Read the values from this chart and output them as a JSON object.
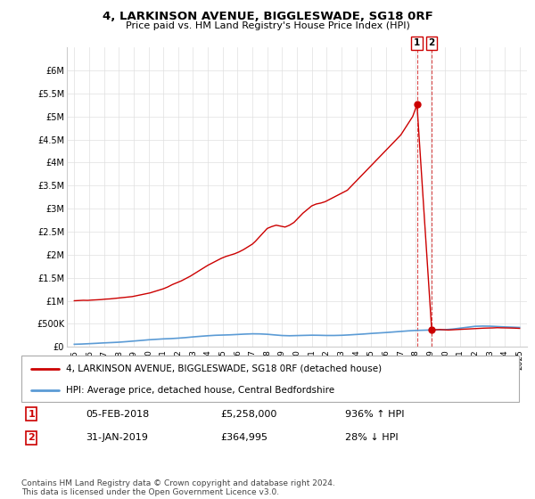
{
  "title": "4, LARKINSON AVENUE, BIGGLESWADE, SG18 0RF",
  "subtitle": "Price paid vs. HM Land Registry's House Price Index (HPI)",
  "legend_line1": "4, LARKINSON AVENUE, BIGGLESWADE, SG18 0RF (detached house)",
  "legend_line2": "HPI: Average price, detached house, Central Bedfordshire",
  "annotation1_date": "05-FEB-2018",
  "annotation1_price": "£5,258,000",
  "annotation1_hpi": "936% ↑ HPI",
  "annotation2_date": "31-JAN-2019",
  "annotation2_price": "£364,995",
  "annotation2_hpi": "28% ↓ HPI",
  "footer": "Contains HM Land Registry data © Crown copyright and database right 2024.\nThis data is licensed under the Open Government Licence v3.0.",
  "hpi_color": "#5b9bd5",
  "price_color": "#cc0000",
  "ylim": [
    0,
    6500000
  ],
  "yticks": [
    0,
    500000,
    1000000,
    1500000,
    2000000,
    2500000,
    3000000,
    3500000,
    4000000,
    4500000,
    5000000,
    5500000,
    6000000
  ],
  "hpi_x": [
    1995.0,
    1995.5,
    1996.0,
    1996.5,
    1997.0,
    1997.5,
    1998.0,
    1998.5,
    1999.0,
    1999.5,
    2000.0,
    2000.5,
    2001.0,
    2001.5,
    2002.0,
    2002.5,
    2003.0,
    2003.5,
    2004.0,
    2004.5,
    2005.0,
    2005.5,
    2006.0,
    2006.5,
    2007.0,
    2007.5,
    2008.0,
    2008.5,
    2009.0,
    2009.5,
    2010.0,
    2010.5,
    2011.0,
    2011.5,
    2012.0,
    2012.5,
    2013.0,
    2013.5,
    2014.0,
    2014.5,
    2015.0,
    2015.5,
    2016.0,
    2016.5,
    2017.0,
    2017.5,
    2018.0,
    2018.5,
    2019.0,
    2019.5,
    2020.0,
    2020.5,
    2021.0,
    2021.5,
    2022.0,
    2022.5,
    2023.0,
    2023.5,
    2024.0,
    2024.5,
    2025.0
  ],
  "hpi_y": [
    55000,
    60000,
    68000,
    76000,
    85000,
    92000,
    100000,
    112000,
    125000,
    138000,
    152000,
    162000,
    172000,
    178000,
    188000,
    200000,
    215000,
    228000,
    240000,
    250000,
    255000,
    260000,
    268000,
    276000,
    282000,
    280000,
    272000,
    258000,
    245000,
    240000,
    244000,
    248000,
    252000,
    250000,
    246000,
    246000,
    250000,
    258000,
    268000,
    278000,
    290000,
    300000,
    310000,
    322000,
    334000,
    346000,
    355000,
    360000,
    365000,
    368000,
    372000,
    385000,
    405000,
    425000,
    445000,
    450000,
    448000,
    440000,
    432000,
    426000,
    420000
  ],
  "price_x": [
    1995.0,
    1995.3,
    1995.6,
    1995.9,
    1996.2,
    1996.5,
    1996.8,
    1997.1,
    1997.4,
    1997.7,
    1998.0,
    1998.3,
    1998.6,
    1998.9,
    1999.2,
    1999.5,
    1999.8,
    2000.1,
    2000.4,
    2000.7,
    2001.0,
    2001.3,
    2001.6,
    2001.9,
    2002.2,
    2002.5,
    2002.8,
    2003.1,
    2003.4,
    2003.7,
    2004.0,
    2004.3,
    2004.6,
    2004.9,
    2005.2,
    2005.5,
    2005.8,
    2006.1,
    2006.4,
    2006.7,
    2007.0,
    2007.2,
    2007.4,
    2007.6,
    2007.8,
    2008.0,
    2008.3,
    2008.6,
    2008.9,
    2009.2,
    2009.5,
    2009.8,
    2010.1,
    2010.4,
    2010.7,
    2011.0,
    2011.3,
    2011.6,
    2011.9,
    2012.2,
    2012.5,
    2012.8,
    2013.1,
    2013.4,
    2013.7,
    2014.0,
    2014.3,
    2014.6,
    2014.9,
    2015.2,
    2015.5,
    2015.8,
    2016.1,
    2016.4,
    2016.7,
    2017.0,
    2017.2,
    2017.4,
    2017.6,
    2017.8,
    2018.09,
    2019.08,
    2019.3,
    2019.6,
    2019.9,
    2020.2,
    2020.5,
    2020.8,
    2021.1,
    2021.4,
    2021.7,
    2022.0,
    2022.3,
    2022.6,
    2022.9,
    2023.2,
    2023.5,
    2023.8,
    2024.1,
    2024.4,
    2024.7,
    2025.0
  ],
  "price_y": [
    1000000,
    1005000,
    1010000,
    1008000,
    1015000,
    1020000,
    1025000,
    1035000,
    1040000,
    1050000,
    1060000,
    1070000,
    1080000,
    1090000,
    1110000,
    1130000,
    1150000,
    1170000,
    1200000,
    1230000,
    1260000,
    1300000,
    1350000,
    1390000,
    1430000,
    1480000,
    1530000,
    1590000,
    1650000,
    1710000,
    1770000,
    1820000,
    1870000,
    1920000,
    1960000,
    1990000,
    2020000,
    2060000,
    2110000,
    2170000,
    2230000,
    2290000,
    2360000,
    2430000,
    2500000,
    2570000,
    2610000,
    2640000,
    2620000,
    2600000,
    2640000,
    2700000,
    2800000,
    2900000,
    2980000,
    3060000,
    3100000,
    3120000,
    3150000,
    3200000,
    3250000,
    3300000,
    3350000,
    3400000,
    3500000,
    3600000,
    3700000,
    3800000,
    3900000,
    4000000,
    4100000,
    4200000,
    4300000,
    4400000,
    4500000,
    4600000,
    4700000,
    4800000,
    4900000,
    5000000,
    5258000,
    364995,
    370000,
    375000,
    370000,
    365000,
    370000,
    375000,
    380000,
    385000,
    390000,
    395000,
    400000,
    405000,
    408000,
    410000,
    415000,
    412000,
    410000,
    408000,
    405000,
    400000
  ],
  "marker1_x": 2018.09,
  "marker1_y": 5258000,
  "marker2_x": 2019.08,
  "marker2_y": 364995,
  "xmin": 1994.5,
  "xmax": 2025.5,
  "xticks": [
    1995,
    1996,
    1997,
    1998,
    1999,
    2000,
    2001,
    2002,
    2003,
    2004,
    2005,
    2006,
    2007,
    2008,
    2009,
    2010,
    2011,
    2012,
    2013,
    2014,
    2015,
    2016,
    2017,
    2018,
    2019,
    2020,
    2021,
    2022,
    2023,
    2024,
    2025
  ],
  "bg_color": "#ffffff",
  "grid_color": "#e0e0e0",
  "spine_color": "#cccccc"
}
